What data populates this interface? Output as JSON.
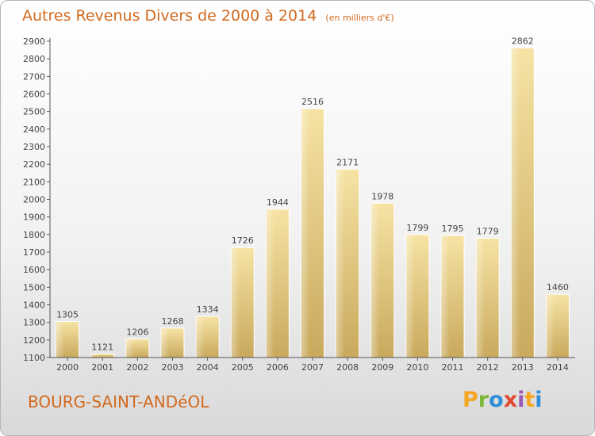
{
  "header": {
    "title": "Autres Revenus Divers de 2000 à 2014",
    "subtitle": "(en milliers d'€)"
  },
  "footer": {
    "commune": "BOURG-SAINT-ANDéOL",
    "logo_text": "Proxiti",
    "logo_colors": [
      "#f5a623",
      "#7bb83c",
      "#2f8fd8",
      "#e2492f",
      "#9b59b6",
      "#f5a623",
      "#2f8fd8"
    ]
  },
  "colors": {
    "bar_light": "#f6e3a4",
    "bar_dark": "#c9a95c",
    "axis": "#555555",
    "text": "#444444",
    "accent": "#d2691e"
  },
  "chart_data": {
    "type": "bar",
    "title": "Autres Revenus Divers de 2000 à 2014",
    "subtitle": "(en milliers d'€)",
    "categories": [
      "2000",
      "2001",
      "2002",
      "2003",
      "2004",
      "2005",
      "2006",
      "2007",
      "2008",
      "2009",
      "2010",
      "2011",
      "2012",
      "2013",
      "2014"
    ],
    "values": [
      1305,
      1121,
      1206,
      1268,
      1334,
      1726,
      1944,
      2516,
      2171,
      1978,
      1799,
      1795,
      1779,
      2862,
      1460
    ],
    "ylim": [
      1100,
      2900
    ],
    "yticks": [
      1100,
      1200,
      1300,
      1400,
      1500,
      1600,
      1700,
      1800,
      1900,
      2000,
      2100,
      2200,
      2300,
      2400,
      2500,
      2600,
      2700,
      2800,
      2900
    ],
    "xlabel": "",
    "ylabel": "",
    "grid": false,
    "data_labels": true
  }
}
